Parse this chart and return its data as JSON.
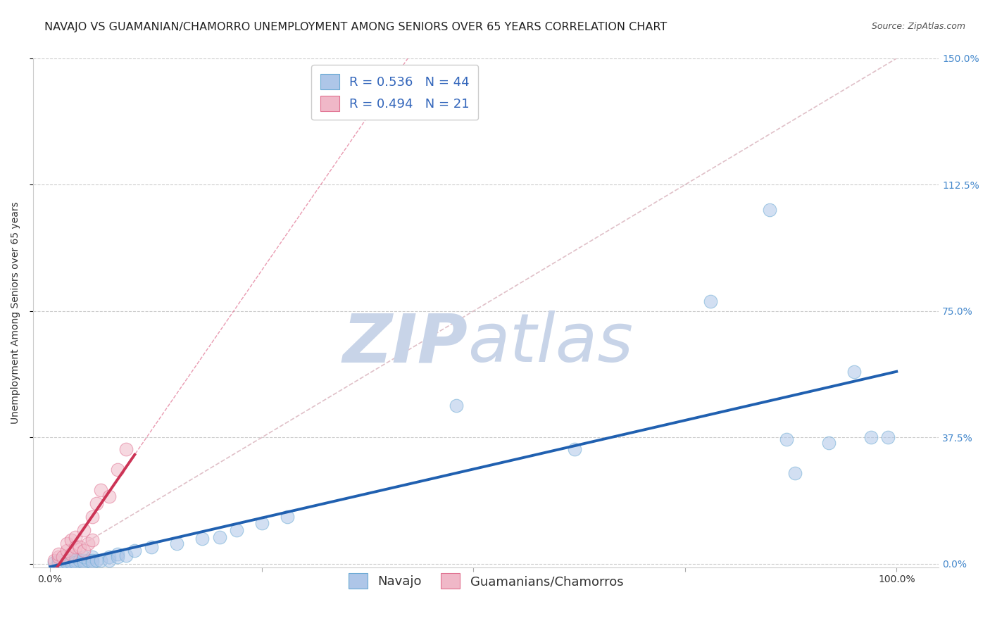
{
  "title": "NAVAJO VS GUAMANIAN/CHAMORRO UNEMPLOYMENT AMONG SENIORS OVER 65 YEARS CORRELATION CHART",
  "source": "Source: ZipAtlas.com",
  "ylabel": "Unemployment Among Seniors over 65 years",
  "xlim": [
    -0.02,
    1.05
  ],
  "ylim": [
    -0.01,
    1.5
  ],
  "navajo_R": 0.536,
  "navajo_N": 44,
  "chamorro_R": 0.494,
  "chamorro_N": 21,
  "navajo_color": "#aec6e8",
  "navajo_edge": "#6aaad4",
  "chamorro_color": "#f0b8c8",
  "chamorro_edge": "#e07090",
  "trend_navajo_color": "#2060b0",
  "trend_chamorro_color": "#cc3355",
  "diagonal_color": "#e0c0c8",
  "background_color": "#ffffff",
  "watermark_zip_color": "#c8d4e8",
  "watermark_atlas_color": "#c8d4e8",
  "navajo_x": [
    0.005,
    0.01,
    0.01,
    0.015,
    0.02,
    0.02,
    0.025,
    0.025,
    0.03,
    0.03,
    0.03,
    0.035,
    0.04,
    0.04,
    0.04,
    0.045,
    0.05,
    0.05,
    0.05,
    0.055,
    0.06,
    0.07,
    0.07,
    0.08,
    0.08,
    0.09,
    0.1,
    0.12,
    0.15,
    0.18,
    0.2,
    0.22,
    0.25,
    0.28,
    0.48,
    0.62,
    0.78,
    0.85,
    0.87,
    0.88,
    0.92,
    0.95,
    0.97,
    0.99
  ],
  "navajo_y": [
    0.005,
    0.01,
    0.005,
    0.005,
    0.01,
    0.005,
    0.01,
    0.005,
    0.01,
    0.02,
    0.005,
    0.01,
    0.01,
    0.005,
    0.02,
    0.01,
    0.02,
    0.01,
    0.005,
    0.01,
    0.01,
    0.02,
    0.01,
    0.03,
    0.02,
    0.025,
    0.04,
    0.05,
    0.06,
    0.075,
    0.08,
    0.1,
    0.12,
    0.14,
    0.47,
    0.34,
    0.78,
    1.05,
    0.37,
    0.27,
    0.36,
    0.57,
    0.375,
    0.375
  ],
  "chamorro_x": [
    0.005,
    0.01,
    0.01,
    0.015,
    0.02,
    0.02,
    0.025,
    0.025,
    0.03,
    0.03,
    0.035,
    0.04,
    0.04,
    0.045,
    0.05,
    0.05,
    0.055,
    0.06,
    0.07,
    0.08,
    0.09
  ],
  "chamorro_y": [
    0.01,
    0.02,
    0.03,
    0.02,
    0.04,
    0.06,
    0.03,
    0.07,
    0.05,
    0.08,
    0.05,
    0.04,
    0.1,
    0.06,
    0.07,
    0.14,
    0.18,
    0.22,
    0.2,
    0.28,
    0.34
  ],
  "chamorro_trend_x_end": 0.1,
  "marker_size": 180,
  "alpha": 0.55,
  "title_fontsize": 11.5,
  "axis_fontsize": 10,
  "tick_fontsize": 10,
  "legend_fontsize": 13,
  "source_fontsize": 9
}
